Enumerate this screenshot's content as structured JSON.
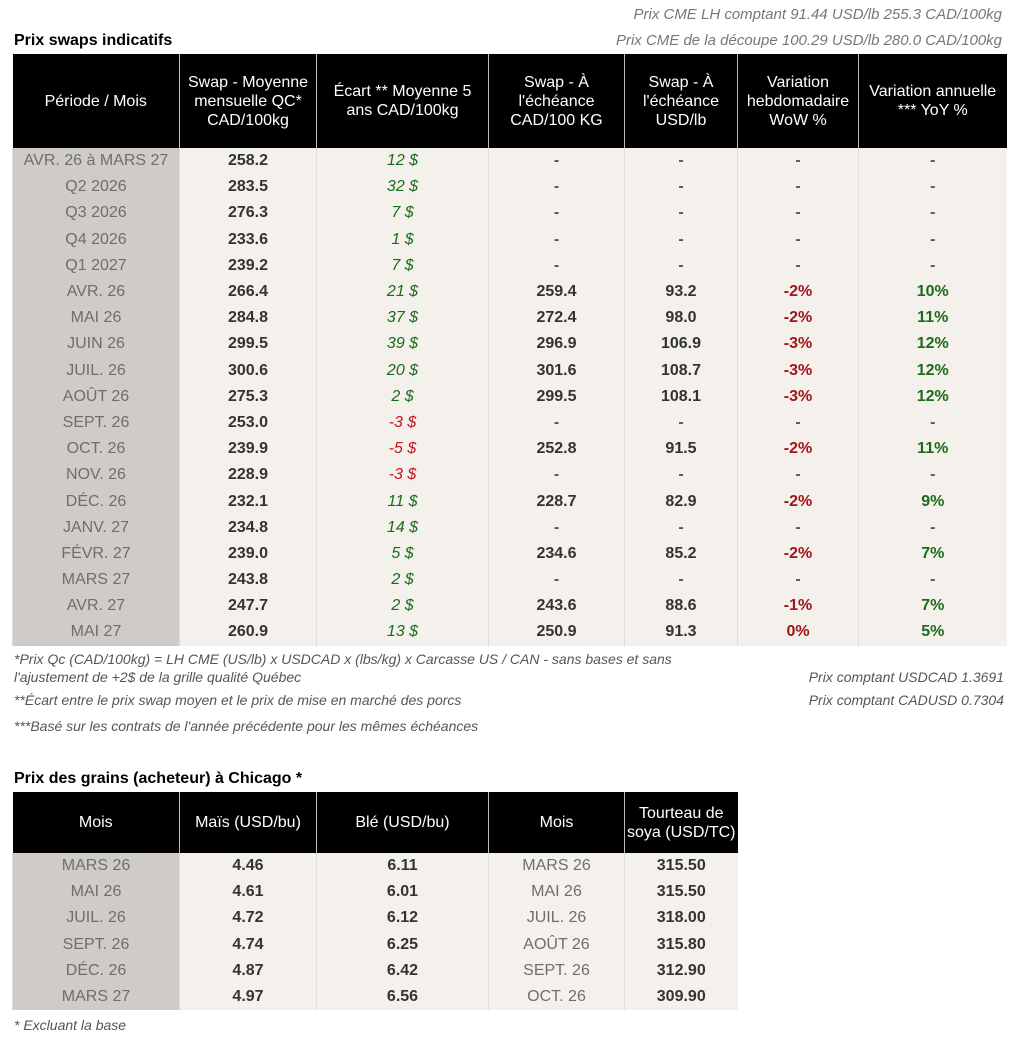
{
  "cme": {
    "lh": "Prix CME LH comptant  91.44 USD/lb  255.3 CAD/100kg",
    "cutout": "Prix CME de la découpe 100.29 USD/lb  280.0 CAD/100kg"
  },
  "swaps": {
    "title": "Prix swaps indicatifs",
    "headers": [
      "Période / Mois",
      "Swap - Moyenne mensuelle QC* CAD/100kg",
      "Écart ** Moyenne 5 ans CAD/100kg",
      "Swap - À l'échéance CAD/100 KG",
      "Swap - À l'échéance USD/lb",
      "Variation hebdomadaire WoW %",
      "Variation annuelle *** YoY %"
    ],
    "rows": [
      [
        "AVR. 26 à  MARS 27",
        "258.2",
        "12 $",
        "-",
        "-",
        "-",
        "-"
      ],
      [
        "Q2 2026",
        "283.5",
        "32 $",
        "-",
        "-",
        "-",
        "-"
      ],
      [
        "Q3 2026",
        "276.3",
        "7 $",
        "-",
        "-",
        "-",
        "-"
      ],
      [
        "Q4 2026",
        "233.6",
        "1 $",
        "-",
        "-",
        "-",
        "-"
      ],
      [
        "Q1 2027",
        "239.2",
        "7 $",
        "-",
        "-",
        "-",
        "-"
      ],
      [
        "AVR. 26",
        "266.4",
        "21 $",
        "259.4",
        "93.2",
        "-2%",
        "10%"
      ],
      [
        "MAI 26",
        "284.8",
        "37 $",
        "272.4",
        "98.0",
        "-2%",
        "11%"
      ],
      [
        "JUIN 26",
        "299.5",
        "39 $",
        "296.9",
        "106.9",
        "-3%",
        "12%"
      ],
      [
        "JUIL. 26",
        "300.6",
        "20 $",
        "301.6",
        "108.7",
        "-3%",
        "12%"
      ],
      [
        "AOÛT 26",
        "275.3",
        "2 $",
        "299.5",
        "108.1",
        "-3%",
        "12%"
      ],
      [
        "SEPT. 26",
        "253.0",
        "-3 $",
        "-",
        "-",
        "-",
        "-"
      ],
      [
        "OCT. 26",
        "239.9",
        "-5 $",
        "252.8",
        "91.5",
        "-2%",
        "11%"
      ],
      [
        "NOV. 26",
        "228.9",
        "-3 $",
        "-",
        "-",
        "-",
        "-"
      ],
      [
        "DÉC. 26",
        "232.1",
        "11 $",
        "228.7",
        "82.9",
        "-2%",
        "9%"
      ],
      [
        "JANV. 27",
        "234.8",
        "14 $",
        "-",
        "-",
        "-",
        "-"
      ],
      [
        "FÉVR. 27",
        "239.0",
        "5 $",
        "234.6",
        "85.2",
        "-2%",
        "7%"
      ],
      [
        "MARS 27",
        "243.8",
        "2 $",
        "-",
        "-",
        "-",
        "-"
      ],
      [
        "AVR. 27",
        "247.7",
        "2 $",
        "243.6",
        "88.6",
        "-1%",
        "7%"
      ],
      [
        "MAI 27",
        "260.9",
        "13 $",
        "250.9",
        "91.3",
        "0%",
        "5%"
      ]
    ]
  },
  "notes": {
    "n1": "*Prix Qc (CAD/100kg) = LH CME (US/lb) x USDCAD x (lbs/kg) x Carcasse US / CAN - sans bases et sans l'ajustement de +2$ de la grille qualité Québec",
    "n2": "**Écart entre le prix swap moyen et le prix de mise en marché des porcs",
    "n3": "***Basé sur les contrats de l'année précédente pour les mêmes échéances",
    "usdcad": "Prix comptant USDCAD 1.3691",
    "cadusd": "Prix comptant CADUSD 0.7304"
  },
  "grains": {
    "title": "Prix des grains (acheteur) à Chicago *",
    "headers": [
      "Mois",
      "Maïs (USD/bu)",
      "Blé (USD/bu)",
      "Mois",
      "Tourteau de soya (USD/TC)"
    ],
    "rows": [
      [
        "MARS 26",
        "4.46",
        "6.11",
        "MARS 26",
        "315.50"
      ],
      [
        "MAI 26",
        "4.61",
        "6.01",
        "MAI 26",
        "315.50"
      ],
      [
        "JUIL. 26",
        "4.72",
        "6.12",
        "JUIL. 26",
        "318.00"
      ],
      [
        "SEPT. 26",
        "4.74",
        "6.25",
        "AOÛT 26",
        "315.80"
      ],
      [
        "DÉC. 26",
        "4.87",
        "6.42",
        "SEPT. 26",
        "312.90"
      ],
      [
        "MARS 27",
        "4.97",
        "6.56",
        "OCT. 26",
        "309.90"
      ]
    ],
    "footnote": "* Excluant la base"
  },
  "colors": {
    "positive": "#1a6b1a",
    "negative": "#c0171b",
    "header_bg": "#000000",
    "first_col_bg": "#cfcbc6",
    "cell_bg": "#f4f1ec"
  }
}
